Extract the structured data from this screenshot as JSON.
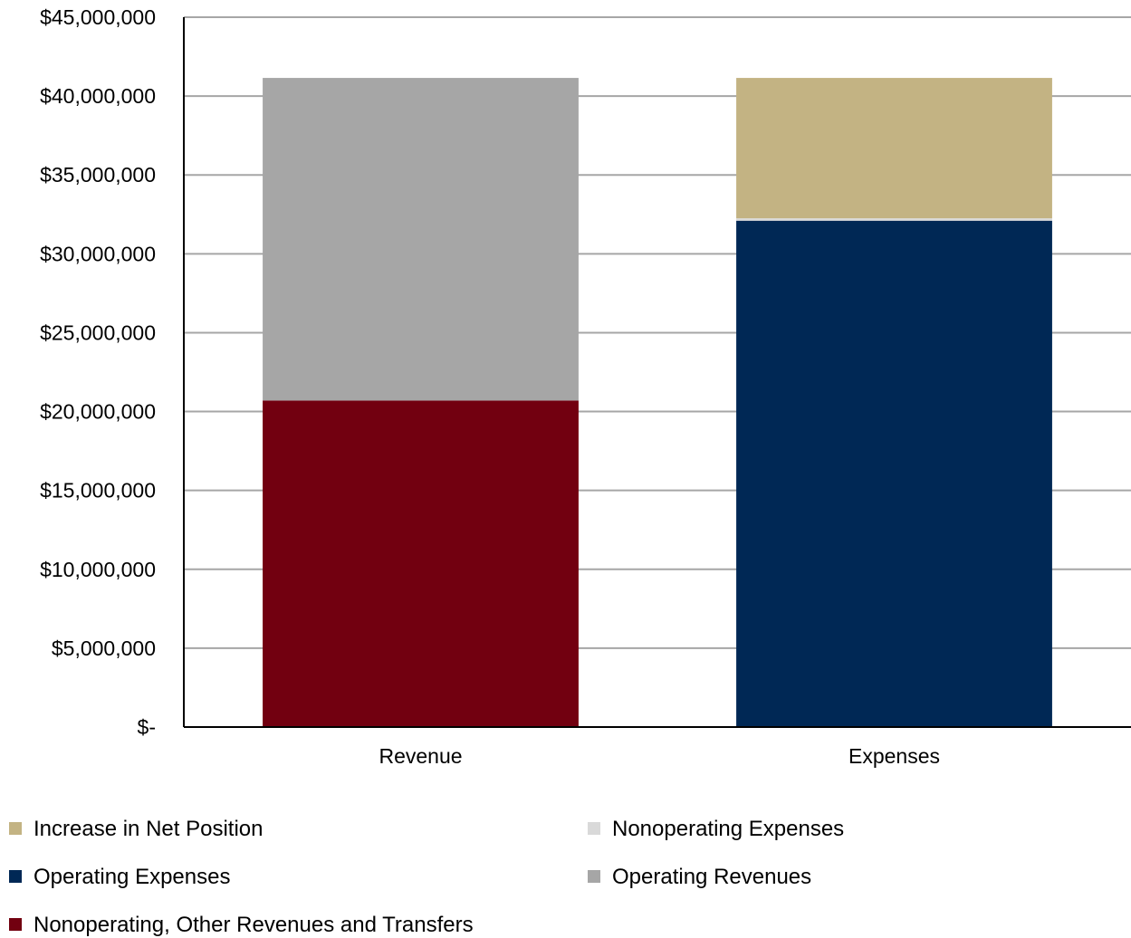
{
  "chart_data": {
    "type": "bar",
    "stacked": true,
    "categories": [
      "Revenue",
      "Expenses"
    ],
    "ylim": [
      0,
      45000000
    ],
    "y_ticks": [
      {
        "value": 0,
        "label": "$-"
      },
      {
        "value": 5000000,
        "label": "$5,000,000"
      },
      {
        "value": 10000000,
        "label": "$10,000,000"
      },
      {
        "value": 15000000,
        "label": "$15,000,000"
      },
      {
        "value": 20000000,
        "label": "$20,000,000"
      },
      {
        "value": 25000000,
        "label": "$25,000,000"
      },
      {
        "value": 30000000,
        "label": "$30,000,000"
      },
      {
        "value": 35000000,
        "label": "$35,000,000"
      },
      {
        "value": 40000000,
        "label": "$40,000,000"
      },
      {
        "value": 45000000,
        "label": "$45,000,000"
      }
    ],
    "grid": true,
    "legend_position": "bottom",
    "series": [
      {
        "name": "Nonoperating, Other Revenues and Transfers",
        "color": "#720010",
        "values": [
          20700000,
          0
        ]
      },
      {
        "name": "Operating Revenues",
        "color": "#a6a6a6",
        "values": [
          20450000,
          0
        ]
      },
      {
        "name": "Operating Expenses",
        "color": "#002855",
        "values": [
          0,
          32100000
        ]
      },
      {
        "name": "Nonoperating Expenses",
        "color": "#d9d9d9",
        "values": [
          0,
          150000
        ]
      },
      {
        "name": "Increase in Net Position",
        "color": "#c3b383",
        "values": [
          0,
          8900000
        ]
      }
    ],
    "legend_order": [
      "Increase in Net Position",
      "Nonoperating Expenses",
      "Operating Expenses",
      "Operating Revenues",
      "Nonoperating, Other Revenues and Transfers"
    ]
  }
}
